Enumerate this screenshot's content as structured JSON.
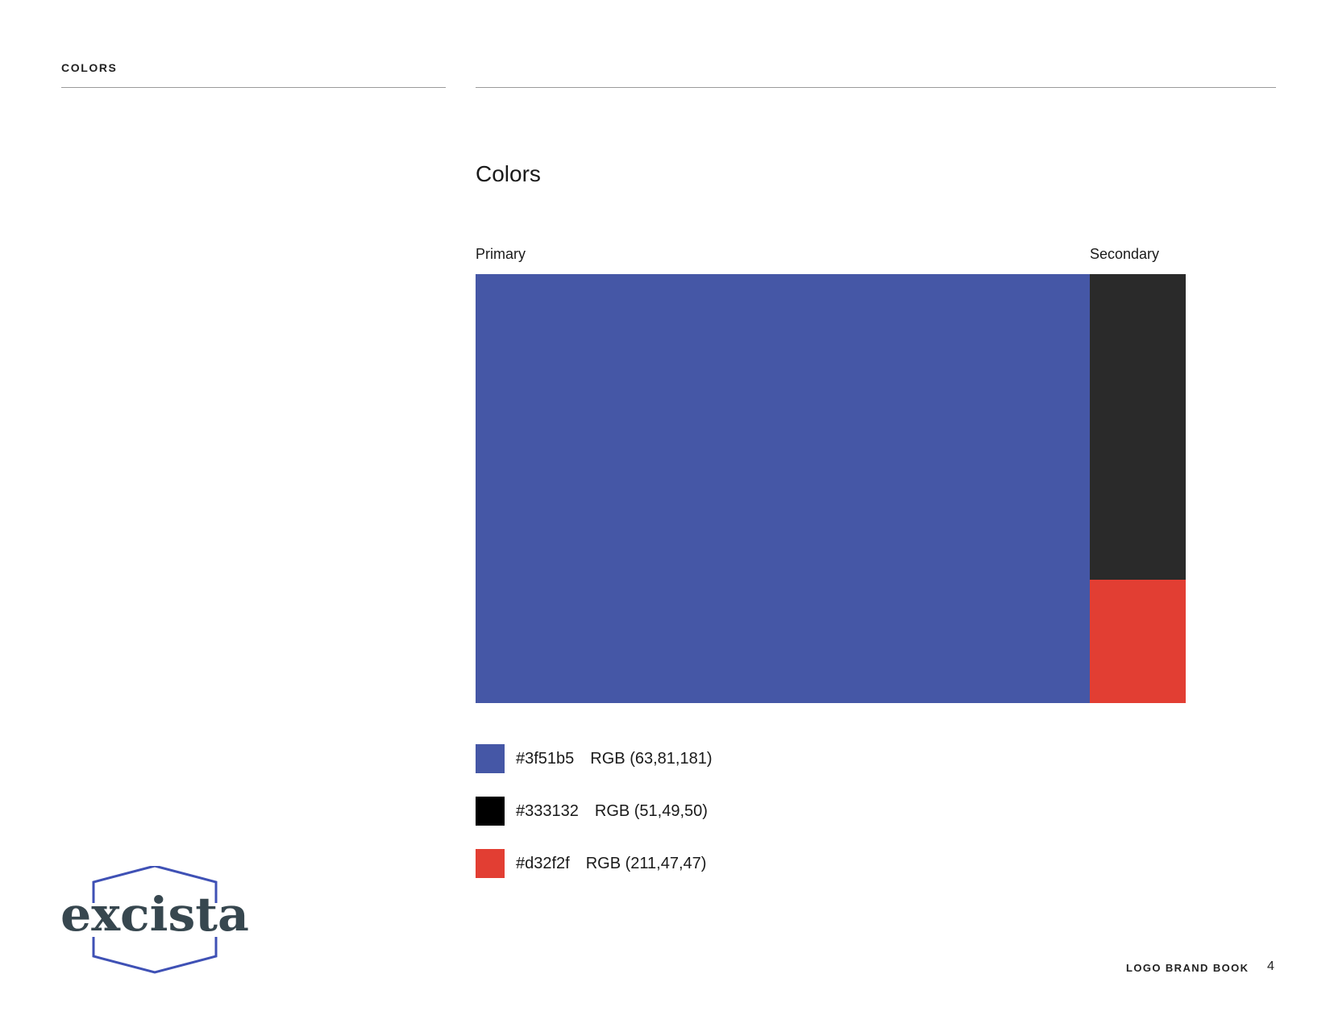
{
  "header": {
    "section_label": "COLORS"
  },
  "main": {
    "title": "Colors",
    "primary_label": "Primary",
    "secondary_label": "Secondary",
    "palette": {
      "primary": "#4557a6",
      "secondary_dark": "#2a2a2a",
      "secondary_red": "#e23e33"
    },
    "swatches": [
      {
        "hex": "#3f51b5",
        "rgb": "RGB (63,81,181)",
        "chip_color": "#4557a6"
      },
      {
        "hex": "#333132",
        "rgb": "RGB (51,49,50)",
        "chip_color": "#000000"
      },
      {
        "hex": "#d32f2f",
        "rgb": "RGB (211,47,47)",
        "chip_color": "#e23e33"
      }
    ]
  },
  "logo": {
    "wordmark": "excista",
    "text_color": "#37474f",
    "outline_color": "#3f51b5"
  },
  "footer": {
    "label": "LOGO BRAND BOOK",
    "page_number": "4"
  }
}
